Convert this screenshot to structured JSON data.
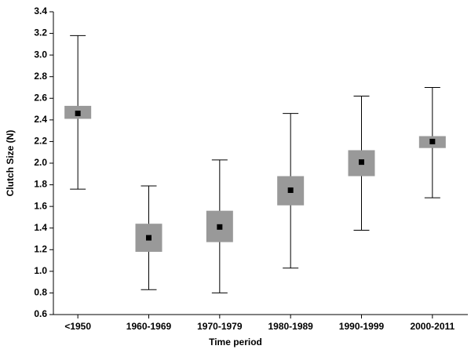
{
  "chart_data": {
    "type": "box",
    "x_label": "Time period",
    "y_label": "Clutch Size (N)",
    "categories": [
      "<1950",
      "1960-1969",
      "1970-1979",
      "1980-1989",
      "1990-1999",
      "2000-2011"
    ],
    "means": [
      2.46,
      1.31,
      1.41,
      1.75,
      2.01,
      2.2
    ],
    "box_low": [
      2.41,
      1.18,
      1.27,
      1.61,
      1.88,
      2.14
    ],
    "box_high": [
      2.53,
      1.44,
      1.56,
      1.88,
      2.12,
      2.25
    ],
    "whisker_low": [
      1.76,
      0.83,
      0.8,
      1.03,
      1.38,
      1.68
    ],
    "whisker_high": [
      3.18,
      1.79,
      2.03,
      2.46,
      2.62,
      2.7
    ],
    "box_color": "#999999",
    "mean_color": "#000000",
    "ylim": [
      0.6,
      3.4
    ],
    "yticks": [
      0.6,
      0.8,
      {
        "value": 1,
        "label": "1.0"
      },
      1.2,
      1.4,
      1.6,
      1.8,
      {
        "value": 2,
        "label": "2.0"
      },
      2.2,
      2.4,
      2.6,
      2.8,
      {
        "value": 3,
        "label": "3.0"
      },
      3.2,
      3.4
    ]
  }
}
